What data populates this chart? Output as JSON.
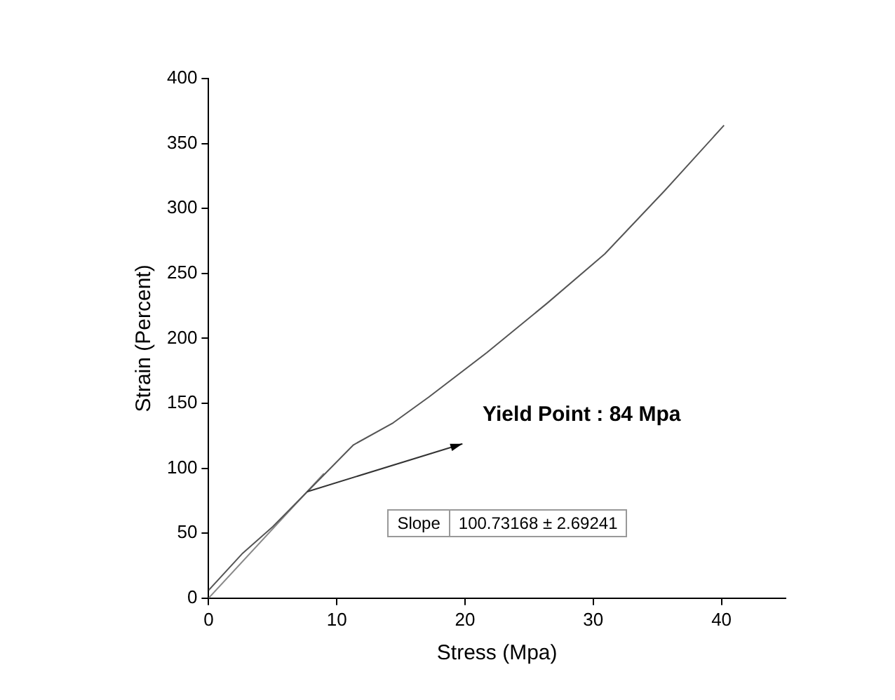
{
  "chart_data": {
    "type": "line",
    "xlabel": "Stress (Mpa)",
    "ylabel": "Strain (Percent)",
    "xlim": [
      0,
      45
    ],
    "ylim": [
      0,
      400
    ],
    "xticks": [
      0,
      10,
      20,
      30,
      40
    ],
    "yticks": [
      0,
      50,
      100,
      150,
      200,
      250,
      300,
      350,
      400
    ],
    "grid": false,
    "legend": false,
    "marker": "none",
    "line_style": "solid",
    "series": [
      {
        "color": "#555555",
        "x": [
          0,
          2.6,
          5,
          7.7,
          11.3,
          14.4,
          17.2,
          21.7,
          26.4,
          30.9,
          35.6,
          40.2
        ],
        "values": [
          6,
          34,
          55,
          82,
          118,
          135,
          155,
          189,
          227,
          265,
          314,
          364
        ]
      },
      {
        "color": "#888888",
        "x": [
          0,
          9
        ],
        "values": [
          0,
          96
        ]
      }
    ],
    "annotations": [
      "Yield Point : 84 Mpa",
      "Slope",
      "100.73168 ± 2.69241"
    ]
  }
}
